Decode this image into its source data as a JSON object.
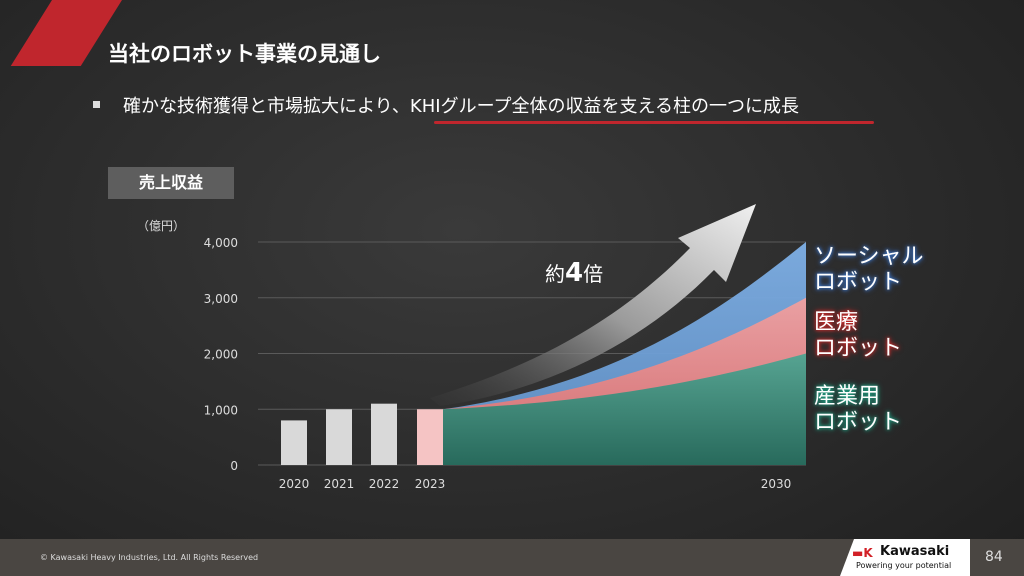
{
  "slide": {
    "title": "当社のロボット事業の見通し",
    "bullet": "確かな技術獲得と市場拡大により、KHIグループ全体の収益を支える柱の一つに成長",
    "tag": "売上収益",
    "unit": "（億円）",
    "multiplier_prefix": "約",
    "multiplier_value": "4",
    "multiplier_suffix": "倍"
  },
  "chart_data": {
    "type": "bar",
    "title": "売上収益",
    "ylabel": "（億円）",
    "ylim": [
      0,
      4000
    ],
    "yticks": [
      "0",
      "1,000",
      "2,000",
      "3,000",
      "4,000"
    ],
    "categories": [
      "2020",
      "2021",
      "2022",
      "2023"
    ],
    "values": [
      800,
      1000,
      1100,
      1000
    ],
    "projection": {
      "type": "area",
      "x_start": "2023",
      "x_end": "2030",
      "series": [
        {
          "name": "産業用ロボット",
          "start": 1000,
          "end": 2000,
          "color": "#2f8a78"
        },
        {
          "name": "医療ロボット",
          "start": 1000,
          "end": 3000,
          "color": "#e07a7a"
        },
        {
          "name": "ソーシャルロボット",
          "start": 1000,
          "end": 4000,
          "color": "#6f9fd4"
        }
      ]
    },
    "annotation": "約4倍",
    "xlabel_end": "2030"
  },
  "legend": {
    "social_1": "ソーシャル",
    "social_2": "ロボット",
    "medical_1": "医療",
    "medical_2": "ロボット",
    "industrial_1": "産業用",
    "industrial_2": "ロボット"
  },
  "footer": {
    "copyright": "© Kawasaki Heavy Industries, Ltd. All Rights Reserved",
    "logo_mark": "▬K",
    "logo_name": "Kawasaki",
    "logo_tagline": "Powering your potential",
    "page_number": "84"
  },
  "colors": {
    "accent": "#c0262d",
    "bar": "#d9d9d9",
    "bar_2023": "#f5c4c4"
  }
}
